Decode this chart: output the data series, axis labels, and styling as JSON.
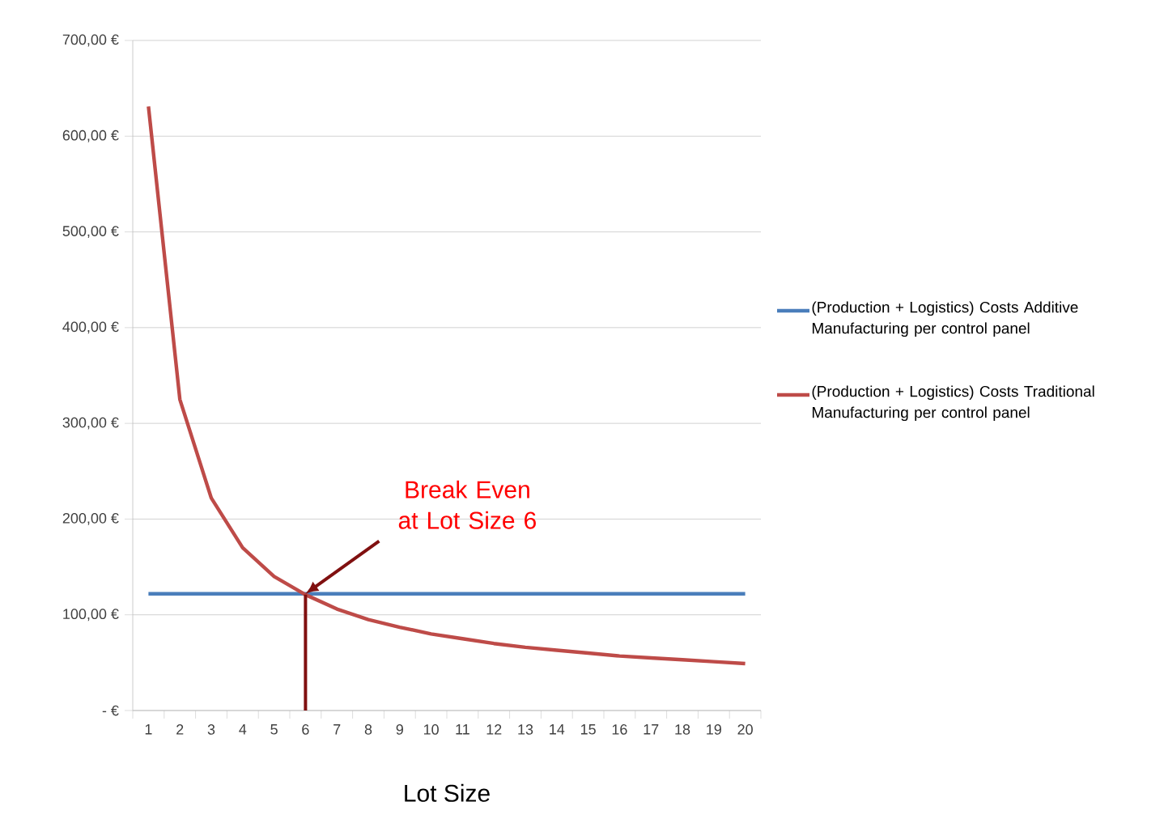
{
  "chart_data": {
    "type": "line",
    "xlabel": "Lot Size",
    "categories": [
      "1",
      "2",
      "3",
      "4",
      "5",
      "6",
      "7",
      "8",
      "9",
      "10",
      "11",
      "12",
      "13",
      "14",
      "15",
      "16",
      "17",
      "18",
      "19",
      "20"
    ],
    "series": [
      {
        "name": "(Production + Logistics) Costs Additive Manufacturing per control panel",
        "color": "#4a7ebb",
        "values": [
          122,
          122,
          122,
          122,
          122,
          122,
          122,
          122,
          122,
          122,
          122,
          122,
          122,
          122,
          122,
          122,
          122,
          122,
          122,
          122
        ]
      },
      {
        "name": "(Production + Logistics) Costs Traditional Manufacturing per control panel",
        "color": "#be4b48",
        "values": [
          631,
          325,
          222,
          170,
          140,
          121,
          106,
          95,
          87,
          80,
          75,
          70,
          66,
          63,
          60,
          57,
          55,
          53,
          51,
          49
        ]
      }
    ],
    "ylim": [
      0,
      700
    ],
    "yticks": [
      {
        "value": 0,
        "label": "-   €"
      },
      {
        "value": 100,
        "label": "100,00 €"
      },
      {
        "value": 200,
        "label": "200,00 €"
      },
      {
        "value": 300,
        "label": "300,00 €"
      },
      {
        "value": 400,
        "label": "400,00 €"
      },
      {
        "value": 500,
        "label": "500,00 €"
      },
      {
        "value": 600,
        "label": "600,00 €"
      },
      {
        "value": 700,
        "label": "700,00 €"
      }
    ],
    "grid": "y",
    "legend": "right",
    "ref_lines": [
      {
        "axis": "x",
        "value": "6",
        "color": "#801010"
      }
    ],
    "annotations": [
      {
        "text": "Break Even at Lot Size 6",
        "x": "6",
        "y": 122
      }
    ]
  }
}
